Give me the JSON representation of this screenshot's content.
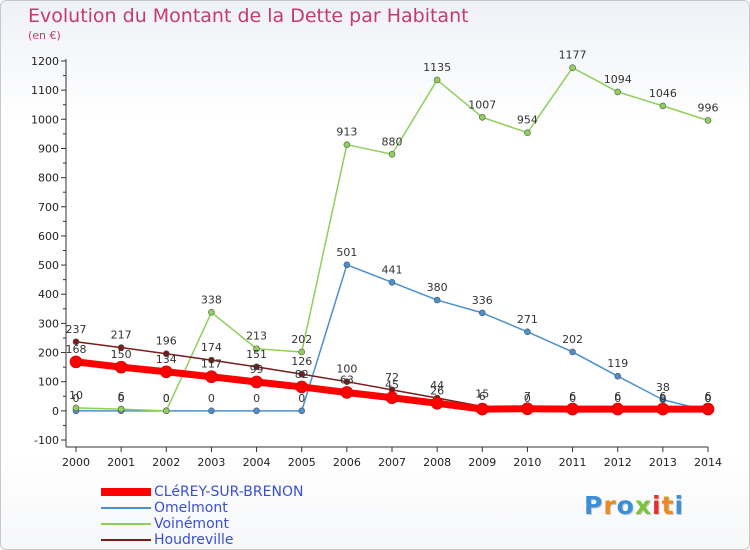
{
  "title": "Evolution du Montant de la Dette par Habitant",
  "unit": "(en €)",
  "logo": {
    "letters": [
      "P",
      "r",
      "o",
      "x",
      "i",
      "t",
      "i"
    ],
    "colors": [
      "#3b8fd6",
      "#e98a22",
      "#3b8fd6",
      "#7cc43a",
      "#e4302f",
      "#e98a22",
      "#3b8fd6"
    ]
  },
  "chart_data": {
    "type": "line",
    "x": [
      "2000",
      "2001",
      "2002",
      "2003",
      "2004",
      "2005",
      "2006",
      "2007",
      "2008",
      "2009",
      "2010",
      "2011",
      "2012",
      "2013",
      "2014"
    ],
    "yticks": [
      "-100",
      "0",
      "100",
      "200",
      "300",
      "400",
      "500",
      "600",
      "700",
      "800",
      "900",
      "1000",
      "1100",
      "1200"
    ],
    "ylim": [
      -100,
      1200
    ],
    "grid": false,
    "legend_position": "bottom-left",
    "series": [
      {
        "name": "CLéREY-SUR-BRENON",
        "color": "#ff0000",
        "width": 7,
        "marker": 6,
        "values": [
          168,
          150,
          134,
          117,
          99,
          82,
          63,
          45,
          26,
          6,
          7,
          6,
          6,
          6,
          6
        ],
        "labels": [
          "168",
          "150",
          "134",
          "117",
          "99",
          "82",
          "63",
          "45",
          "26",
          "6",
          "7",
          "6",
          "6",
          "6",
          "6"
        ]
      },
      {
        "name": "Omelmont",
        "color": "#4a8fd0",
        "width": 1.5,
        "marker": 3,
        "values": [
          0,
          0,
          0,
          0,
          0,
          0,
          501,
          441,
          380,
          336,
          271,
          202,
          119,
          38,
          0
        ],
        "labels": [
          "0",
          "0",
          "0",
          "0",
          "0",
          "0",
          "501",
          "441",
          "380",
          "336",
          "271",
          "202",
          "119",
          "38",
          "0"
        ]
      },
      {
        "name": "Voinémont",
        "color": "#8fd05a",
        "width": 1.5,
        "marker": 3,
        "values": [
          10,
          6,
          0,
          338,
          213,
          202,
          913,
          880,
          1135,
          1007,
          954,
          1177,
          1094,
          1046,
          996
        ],
        "labels": [
          "10",
          "6",
          "0",
          "338",
          "213",
          "202",
          "913",
          "880",
          "1135",
          "1007",
          "954",
          "1177",
          "1094",
          "1046",
          "996"
        ]
      },
      {
        "name": "Houdreville",
        "color": "#7a1c1c",
        "width": 1.5,
        "marker": 3,
        "values": [
          237,
          217,
          196,
          174,
          151,
          126,
          100,
          72,
          44,
          15,
          0,
          0,
          0,
          0,
          0
        ],
        "labels": [
          "237",
          "217",
          "196",
          "174",
          "151",
          "126",
          "100",
          "72",
          "44",
          "15",
          "0",
          "0",
          "0",
          "0",
          "0"
        ]
      }
    ]
  }
}
